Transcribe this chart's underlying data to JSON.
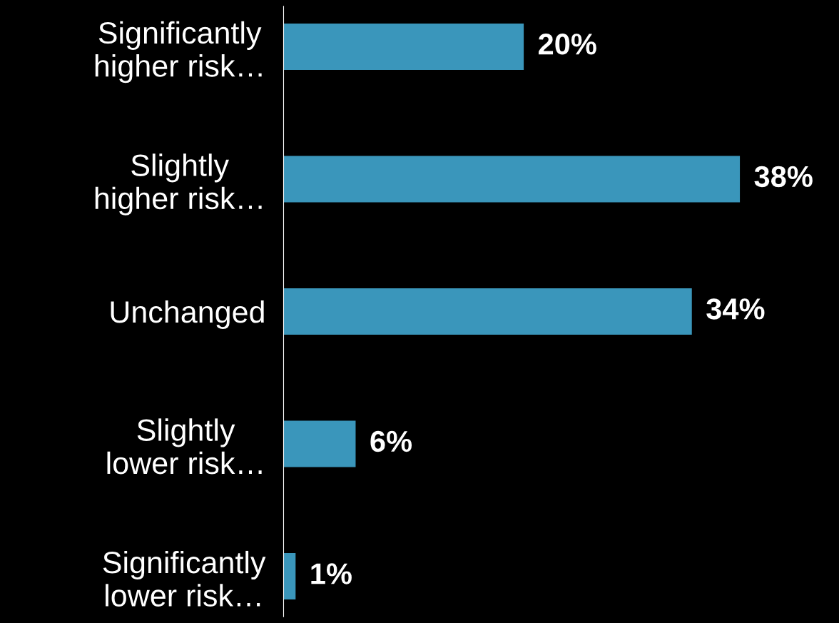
{
  "chart_data": {
    "type": "bar",
    "orientation": "horizontal",
    "categories": [
      "Significantly\nhigher risk…",
      "Slightly\nhigher risk…",
      "Unchanged",
      "Slightly\nlower risk…",
      "Significantly\nlower risk…"
    ],
    "values": [
      20,
      38,
      34,
      6,
      1
    ],
    "color": "#3a96bb",
    "value_labels": [
      "20%",
      "38%",
      "34%",
      "6%",
      "1%"
    ],
    "grid": false,
    "legend": false,
    "tick_labels": "y"
  }
}
